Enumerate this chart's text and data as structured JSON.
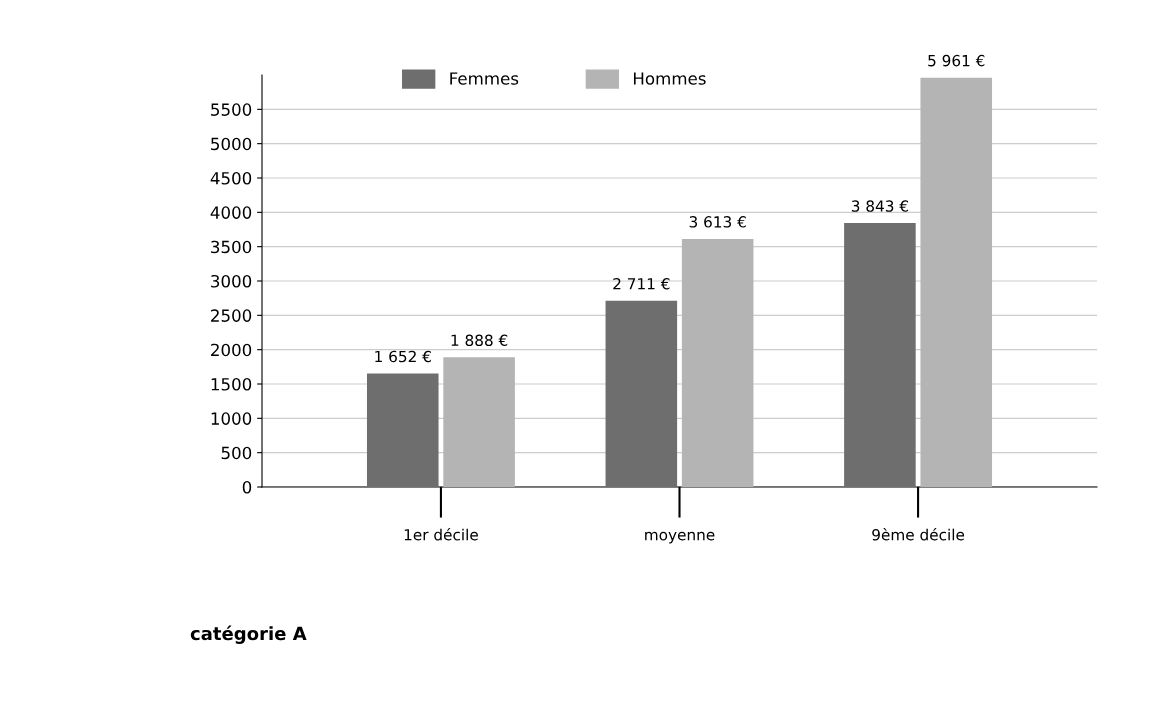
{
  "chart_data": {
    "type": "bar",
    "categories": [
      "1er décile",
      "moyenne",
      "9ème décile"
    ],
    "series": [
      {
        "name": "Femmes",
        "color": "#6e6e6e",
        "values": [
          1652,
          2711,
          3843
        ],
        "value_labels": [
          "1 652 €",
          "2 711 €",
          "3 843 €"
        ]
      },
      {
        "name": "Hommes",
        "color": "#b4b4b4",
        "values": [
          1888,
          3613,
          5961
        ],
        "value_labels": [
          "1 888 €",
          "3 613 €",
          "5 961 €"
        ]
      }
    ],
    "ylim": [
      0,
      6000
    ],
    "yticks": [
      0,
      500,
      1000,
      1500,
      2000,
      2500,
      3000,
      3500,
      4000,
      4500,
      5000,
      5500
    ],
    "grid": "y",
    "legend": "top",
    "annotations": [
      "catégorie A"
    ]
  }
}
